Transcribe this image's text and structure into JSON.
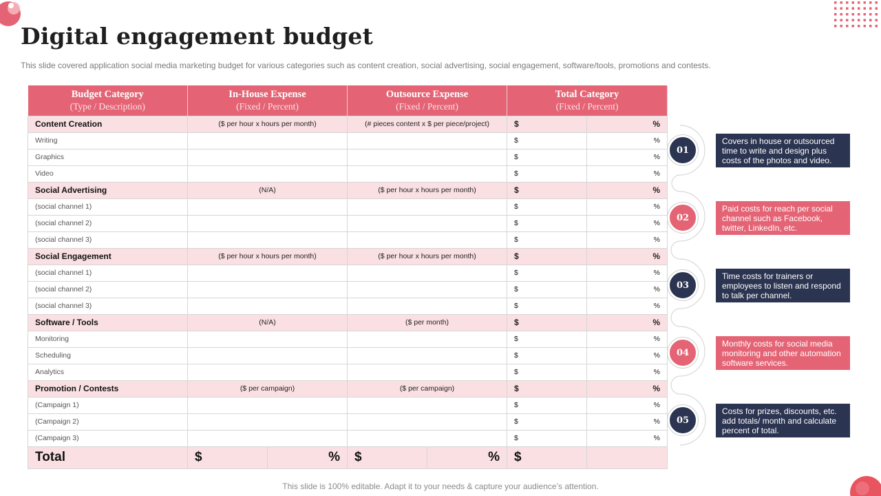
{
  "slide": {
    "title": "Digital engagement budget",
    "subtitle": "This slide covered application social media marketing budget for various categories such as content creation, social advertising, social engagement, software/tools, promotions and contests.",
    "footer": "This slide is 100% editable. Adapt it to your needs & capture your audience’s attention."
  },
  "colors": {
    "accent": "#e46475",
    "navy": "#2b3450",
    "row_tint": "#fae0e3"
  },
  "table": {
    "headers": [
      {
        "line1": "Budget Category",
        "line2": "(Type / Description)"
      },
      {
        "line1": "In-House Expense",
        "line2": "(Fixed / Percent)"
      },
      {
        "line1": "Outsource Expense",
        "line2": "(Fixed / Percent)"
      },
      {
        "line1": "Total Category",
        "line2": "(Fixed / Percent)"
      }
    ],
    "currency": "$",
    "percent": "%",
    "groups": [
      {
        "label": "Content Creation",
        "inhouse": "($ per hour x hours per month)",
        "outsource": "(# pieces content x $ per piece/project)",
        "items": [
          "Writing",
          "Graphics",
          "Video"
        ]
      },
      {
        "label": "Social Advertising",
        "inhouse": "(N/A)",
        "outsource": "($ per hour x hours per month)",
        "items": [
          "(social channel 1)",
          "(social channel 2)",
          "(social channel 3)"
        ]
      },
      {
        "label": "Social Engagement",
        "inhouse": "($ per hour x hours per month)",
        "outsource": "($ per hour x hours per month)",
        "items": [
          "(social channel 1)",
          "(social channel 2)",
          "(social channel 3)"
        ]
      },
      {
        "label": "Software / Tools",
        "inhouse": "(N/A)",
        "outsource": "($ per month)",
        "items": [
          "Monitoring",
          "Scheduling",
          "Analytics"
        ]
      },
      {
        "label": "Promotion / Contests",
        "inhouse": "($ per campaign)",
        "outsource": "($ per campaign)",
        "items": [
          "(Campaign 1)",
          "(Campaign 2)",
          "(Campaign 3)"
        ]
      }
    ],
    "total_label": "Total"
  },
  "notes": [
    {
      "num": "01",
      "text": "Covers in house or outsourced time to write and design plus costs of the photos and video.",
      "color": "navy"
    },
    {
      "num": "02",
      "text": "Paid costs for reach per social channel such as Facebook, twitter, LinkedIn, etc.",
      "color": "pink"
    },
    {
      "num": "03",
      "text": "Time costs for trainers or employees to listen and respond to talk per channel.",
      "color": "navy"
    },
    {
      "num": "04",
      "text": "Monthly costs for social media monitoring and other automation software services.",
      "color": "pink"
    },
    {
      "num": "05",
      "text": "Costs for prizes, discounts, etc. add totals/ month and calculate percent of total.",
      "color": "navy"
    }
  ]
}
